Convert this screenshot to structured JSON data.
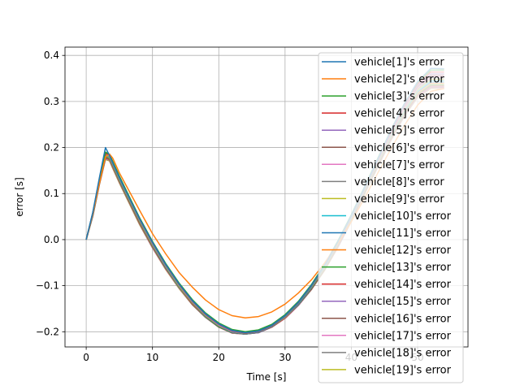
{
  "chart_data": {
    "type": "line",
    "xlabel": "Time [s]",
    "ylabel": "error [s]",
    "xlim": [
      -3.2,
      57.6
    ],
    "ylim": [
      -0.233,
      0.418
    ],
    "xticks": [
      0,
      10,
      20,
      30,
      40,
      50
    ],
    "yticks": [
      -0.2,
      -0.1,
      0.0,
      0.1,
      0.2,
      0.3,
      0.4
    ],
    "ytick_labels": [
      "−0.2",
      "−0.1",
      "0.0",
      "0.1",
      "0.2",
      "0.3",
      "0.4"
    ],
    "grid": true,
    "legend_position": "upper right",
    "colors": [
      "#1f77b4",
      "#ff7f0e",
      "#2ca02c",
      "#d62728",
      "#9467bd",
      "#8c564b",
      "#e377c2",
      "#7f7f7f",
      "#bcbd22",
      "#17becf"
    ],
    "x": [
      0,
      1,
      2,
      2.9,
      3.5,
      4,
      5,
      6,
      8,
      10,
      12,
      14,
      16,
      18,
      20,
      22,
      24,
      26,
      28,
      30,
      32,
      34,
      36,
      38,
      40,
      42,
      44,
      46,
      48,
      50,
      52,
      54
    ],
    "series": [
      {
        "name": "vehicle[1]'s error",
        "values": [
          0,
          0.06,
          0.135,
          0.2,
          0.183,
          0.167,
          0.135,
          0.105,
          0.047,
          -0.006,
          -0.054,
          -0.096,
          -0.132,
          -0.161,
          -0.183,
          -0.197,
          -0.202,
          -0.198,
          -0.186,
          -0.165,
          -0.136,
          -0.099,
          -0.055,
          -0.004,
          0.052,
          0.113,
          0.175,
          0.238,
          0.295,
          0.343,
          0.372,
          0.371
        ]
      },
      {
        "name": "vehicle[2]'s error",
        "values": [
          0,
          0.057,
          0.122,
          0.18,
          0.186,
          0.177,
          0.145,
          0.118,
          0.065,
          0.013,
          -0.031,
          -0.071,
          -0.103,
          -0.131,
          -0.152,
          -0.165,
          -0.17,
          -0.167,
          -0.157,
          -0.14,
          -0.116,
          -0.087,
          -0.05,
          -0.008,
          0.039,
          0.09,
          0.145,
          0.198,
          0.248,
          0.292,
          0.322,
          0.328
        ]
      },
      {
        "name": "vehicle[3]'s error",
        "values": [
          0,
          0.059,
          0.131,
          0.19,
          0.185,
          0.17,
          0.138,
          0.108,
          0.049,
          -0.004,
          -0.052,
          -0.094,
          -0.13,
          -0.159,
          -0.181,
          -0.195,
          -0.2,
          -0.196,
          -0.184,
          -0.163,
          -0.134,
          -0.097,
          -0.053,
          -0.002,
          0.054,
          0.115,
          0.177,
          0.239,
          0.295,
          0.341,
          0.368,
          0.368
        ]
      },
      {
        "name": "vehicle[4]'s error",
        "values": [
          0,
          0.058,
          0.13,
          0.188,
          0.184,
          0.169,
          0.137,
          0.107,
          0.048,
          -0.005,
          -0.053,
          -0.095,
          -0.131,
          -0.16,
          -0.182,
          -0.196,
          -0.201,
          -0.197,
          -0.185,
          -0.164,
          -0.135,
          -0.098,
          -0.054,
          -0.003,
          0.053,
          0.114,
          0.176,
          0.237,
          0.293,
          0.338,
          0.364,
          0.364
        ]
      },
      {
        "name": "vehicle[5]'s error",
        "values": [
          0,
          0.059,
          0.13,
          0.189,
          0.184,
          0.168,
          0.136,
          0.106,
          0.047,
          -0.006,
          -0.054,
          -0.096,
          -0.132,
          -0.161,
          -0.183,
          -0.197,
          -0.202,
          -0.198,
          -0.186,
          -0.165,
          -0.136,
          -0.099,
          -0.055,
          -0.004,
          0.052,
          0.112,
          0.174,
          0.235,
          0.29,
          0.335,
          0.36,
          0.36
        ]
      },
      {
        "name": "vehicle[6]'s error",
        "values": [
          0,
          0.058,
          0.129,
          0.187,
          0.183,
          0.167,
          0.135,
          0.105,
          0.046,
          -0.007,
          -0.055,
          -0.097,
          -0.133,
          -0.162,
          -0.184,
          -0.198,
          -0.203,
          -0.199,
          -0.187,
          -0.166,
          -0.137,
          -0.1,
          -0.056,
          -0.005,
          0.051,
          0.111,
          0.172,
          0.233,
          0.288,
          0.332,
          0.357,
          0.357
        ]
      },
      {
        "name": "vehicle[7]'s error",
        "values": [
          0,
          0.057,
          0.128,
          0.186,
          0.182,
          0.166,
          0.134,
          0.104,
          0.045,
          -0.008,
          -0.056,
          -0.098,
          -0.134,
          -0.163,
          -0.185,
          -0.199,
          -0.203,
          -0.199,
          -0.187,
          -0.166,
          -0.137,
          -0.1,
          -0.056,
          -0.006,
          0.05,
          0.11,
          0.171,
          0.231,
          0.286,
          0.33,
          0.354,
          0.354
        ]
      },
      {
        "name": "vehicle[8]'s error",
        "values": [
          0,
          0.057,
          0.127,
          0.185,
          0.181,
          0.165,
          0.133,
          0.103,
          0.044,
          -0.009,
          -0.057,
          -0.099,
          -0.135,
          -0.164,
          -0.186,
          -0.2,
          -0.204,
          -0.2,
          -0.188,
          -0.167,
          -0.138,
          -0.101,
          -0.057,
          -0.007,
          0.049,
          0.109,
          0.17,
          0.23,
          0.284,
          0.328,
          0.351,
          0.351
        ]
      },
      {
        "name": "vehicle[9]'s error",
        "values": [
          0,
          0.056,
          0.126,
          0.184,
          0.18,
          0.164,
          0.132,
          0.102,
          0.043,
          -0.01,
          -0.058,
          -0.1,
          -0.136,
          -0.165,
          -0.187,
          -0.2,
          -0.204,
          -0.2,
          -0.188,
          -0.167,
          -0.138,
          -0.102,
          -0.058,
          -0.008,
          0.048,
          0.108,
          0.168,
          0.228,
          0.282,
          0.325,
          0.348,
          0.348
        ]
      },
      {
        "name": "vehicle[10]'s error",
        "values": [
          0,
          0.056,
          0.126,
          0.183,
          0.179,
          0.163,
          0.131,
          0.101,
          0.042,
          -0.011,
          -0.059,
          -0.101,
          -0.136,
          -0.165,
          -0.187,
          -0.2,
          -0.204,
          -0.2,
          -0.188,
          -0.168,
          -0.139,
          -0.103,
          -0.059,
          -0.009,
          0.047,
          0.107,
          0.167,
          0.226,
          0.28,
          0.323,
          0.345,
          0.345
        ]
      },
      {
        "name": "vehicle[11]'s error",
        "values": [
          0,
          0.055,
          0.125,
          0.182,
          0.178,
          0.162,
          0.13,
          0.1,
          0.041,
          -0.012,
          -0.06,
          -0.101,
          -0.137,
          -0.166,
          -0.188,
          -0.201,
          -0.205,
          -0.201,
          -0.189,
          -0.168,
          -0.14,
          -0.104,
          -0.06,
          -0.01,
          0.046,
          0.106,
          0.166,
          0.225,
          0.278,
          0.321,
          0.342,
          0.342
        ]
      },
      {
        "name": "vehicle[12]'s error",
        "values": [
          0,
          0.055,
          0.124,
          0.181,
          0.177,
          0.161,
          0.129,
          0.099,
          0.04,
          -0.013,
          -0.06,
          -0.102,
          -0.138,
          -0.166,
          -0.188,
          -0.201,
          -0.205,
          -0.201,
          -0.189,
          -0.169,
          -0.14,
          -0.104,
          -0.061,
          -0.011,
          0.045,
          0.105,
          0.165,
          0.223,
          0.276,
          0.318,
          0.339,
          0.339
        ]
      },
      {
        "name": "vehicle[13]'s error",
        "values": [
          0,
          0.054,
          0.123,
          0.18,
          0.176,
          0.16,
          0.128,
          0.098,
          0.039,
          -0.014,
          -0.061,
          -0.103,
          -0.138,
          -0.167,
          -0.189,
          -0.202,
          -0.205,
          -0.201,
          -0.189,
          -0.169,
          -0.141,
          -0.105,
          -0.062,
          -0.012,
          0.044,
          0.104,
          0.164,
          0.222,
          0.274,
          0.316,
          0.336,
          0.336
        ]
      },
      {
        "name": "vehicle[14]'s error",
        "values": [
          0,
          0.054,
          0.123,
          0.179,
          0.175,
          0.159,
          0.127,
          0.097,
          0.038,
          -0.015,
          -0.062,
          -0.103,
          -0.139,
          -0.167,
          -0.189,
          -0.202,
          -0.205,
          -0.201,
          -0.19,
          -0.17,
          -0.141,
          -0.106,
          -0.063,
          -0.013,
          0.043,
          0.103,
          0.163,
          0.221,
          0.273,
          0.314,
          0.334,
          0.334
        ]
      },
      {
        "name": "vehicle[15]'s error",
        "values": [
          0,
          0.053,
          0.122,
          0.178,
          0.175,
          0.159,
          0.127,
          0.097,
          0.038,
          -0.015,
          -0.062,
          -0.104,
          -0.139,
          -0.168,
          -0.189,
          -0.202,
          -0.205,
          -0.202,
          -0.19,
          -0.17,
          -0.142,
          -0.106,
          -0.063,
          -0.014,
          0.042,
          0.102,
          0.162,
          0.22,
          0.272,
          0.313,
          0.333,
          0.333
        ]
      },
      {
        "name": "vehicle[16]'s error",
        "values": [
          0,
          0.053,
          0.121,
          0.177,
          0.174,
          0.158,
          0.126,
          0.096,
          0.037,
          -0.016,
          -0.063,
          -0.104,
          -0.14,
          -0.168,
          -0.19,
          -0.202,
          -0.205,
          -0.202,
          -0.19,
          -0.17,
          -0.142,
          -0.107,
          -0.064,
          -0.014,
          0.042,
          0.101,
          0.161,
          0.219,
          0.271,
          0.312,
          0.331,
          0.331
        ]
      },
      {
        "name": "vehicle[17]'s error",
        "values": [
          0,
          0.052,
          0.121,
          0.176,
          0.173,
          0.157,
          0.125,
          0.095,
          0.036,
          -0.017,
          -0.064,
          -0.105,
          -0.14,
          -0.168,
          -0.19,
          -0.203,
          -0.205,
          -0.202,
          -0.19,
          -0.171,
          -0.143,
          -0.107,
          -0.064,
          -0.015,
          0.041,
          0.101,
          0.16,
          0.218,
          0.27,
          0.311,
          0.33,
          0.33
        ]
      },
      {
        "name": "vehicle[18]'s error",
        "values": [
          0,
          0.052,
          0.12,
          0.175,
          0.172,
          0.156,
          0.124,
          0.094,
          0.035,
          -0.018,
          -0.064,
          -0.105,
          -0.141,
          -0.169,
          -0.19,
          -0.203,
          -0.205,
          -0.202,
          -0.19,
          -0.171,
          -0.143,
          -0.108,
          -0.065,
          -0.016,
          0.04,
          0.1,
          0.159,
          0.217,
          0.269,
          0.31,
          0.329,
          0.329
        ]
      },
      {
        "name": "vehicle[19]'s error",
        "values": [
          0,
          0.051,
          0.12,
          0.174,
          0.171,
          0.155,
          0.123,
          0.093,
          0.034,
          -0.018,
          -0.065,
          -0.106,
          -0.141,
          -0.169,
          -0.19,
          -0.203,
          -0.205,
          -0.202,
          -0.19,
          -0.171,
          -0.143,
          -0.108,
          -0.066,
          -0.016,
          0.04,
          0.099,
          0.158,
          0.216,
          0.268,
          0.309,
          0.328,
          0.328
        ]
      }
    ]
  }
}
